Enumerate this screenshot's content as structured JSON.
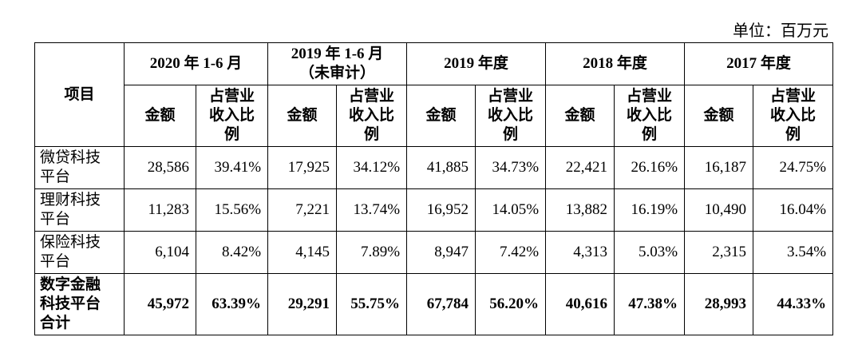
{
  "unit": "单位：百万元",
  "table": {
    "item_header": "项目",
    "periods": [
      "2020 年 1-6 月",
      "2019 年 1-6 月（未审计）",
      "2019 年度",
      "2018 年度",
      "2017 年度"
    ],
    "sub_headers": [
      "金额",
      "占营业收入比例",
      "金额",
      "占营业收入比例",
      "金额",
      "占营业收入比例",
      "金额",
      "占营业收入比例",
      "金额",
      "占营业收入比例"
    ],
    "rows": [
      [
        "微贷科技平台",
        "28,586",
        "39.41%",
        "17,925",
        "34.12%",
        "41,885",
        "34.73%",
        "22,421",
        "26.16%",
        "16,187",
        "24.75%"
      ],
      [
        "理财科技平台",
        "11,283",
        "15.56%",
        "7,221",
        "13.74%",
        "16,952",
        "14.05%",
        "13,882",
        "16.19%",
        "10,490",
        "16.04%"
      ],
      [
        "保险科技平台",
        "6,104",
        "8.42%",
        "4,145",
        "7.89%",
        "8,947",
        "7.42%",
        "4,313",
        "5.03%",
        "2,315",
        "3.54%"
      ],
      [
        "数字金融科技平台合计",
        "45,972",
        "63.39%",
        "29,291",
        "55.75%",
        "67,784",
        "56.20%",
        "40,616",
        "47.38%",
        "28,993",
        "44.33%"
      ]
    ]
  }
}
